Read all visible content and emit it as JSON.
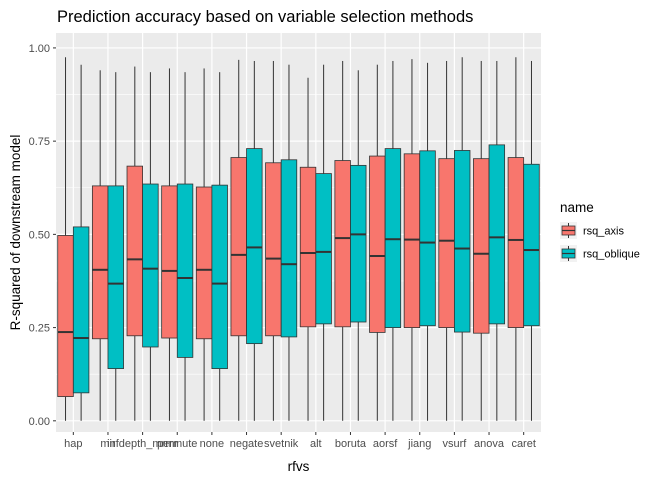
{
  "chart_data": {
    "type": "boxplot",
    "title": "Prediction accuracy based on variable selection methods",
    "xlabel": "rfvs",
    "ylabel": "R-squared of downstream model",
    "ylim": [
      -0.03,
      1.04
    ],
    "y_ticks": [
      "0.00",
      "0.25",
      "0.50",
      "0.75",
      "1.00"
    ],
    "categories": [
      "hap",
      "mir",
      "infdepth_mrmr",
      "permute",
      "none",
      "negate",
      "svetnik",
      "alt",
      "boruta",
      "aorsf",
      "jiang",
      "vsurf",
      "anova",
      "caret"
    ],
    "grid": true,
    "legend": {
      "title": "name",
      "position": "right"
    },
    "series": [
      {
        "name": "rsq_axis",
        "color": "#F8766D",
        "boxes": [
          {
            "min": 0.0,
            "q1": 0.065,
            "median": 0.238,
            "q3": 0.497,
            "max": 0.975
          },
          {
            "min": 0.0,
            "q1": 0.22,
            "median": 0.405,
            "q3": 0.63,
            "max": 0.94
          },
          {
            "min": 0.0,
            "q1": 0.228,
            "median": 0.433,
            "q3": 0.683,
            "max": 0.95
          },
          {
            "min": 0.0,
            "q1": 0.222,
            "median": 0.402,
            "q3": 0.63,
            "max": 0.945
          },
          {
            "min": 0.0,
            "q1": 0.22,
            "median": 0.405,
            "q3": 0.627,
            "max": 0.945
          },
          {
            "min": 0.0,
            "q1": 0.228,
            "median": 0.445,
            "q3": 0.706,
            "max": 0.968
          },
          {
            "min": 0.0,
            "q1": 0.228,
            "median": 0.435,
            "q3": 0.692,
            "max": 0.965
          },
          {
            "min": 0.0,
            "q1": 0.252,
            "median": 0.45,
            "q3": 0.68,
            "max": 0.92
          },
          {
            "min": 0.0,
            "q1": 0.252,
            "median": 0.49,
            "q3": 0.698,
            "max": 0.965
          },
          {
            "min": 0.0,
            "q1": 0.237,
            "median": 0.442,
            "q3": 0.71,
            "max": 0.955
          },
          {
            "min": 0.0,
            "q1": 0.25,
            "median": 0.486,
            "q3": 0.716,
            "max": 0.97
          },
          {
            "min": 0.0,
            "q1": 0.25,
            "median": 0.483,
            "q3": 0.703,
            "max": 0.965
          },
          {
            "min": 0.0,
            "q1": 0.235,
            "median": 0.448,
            "q3": 0.703,
            "max": 0.965
          },
          {
            "min": 0.0,
            "q1": 0.25,
            "median": 0.485,
            "q3": 0.706,
            "max": 0.975
          }
        ]
      },
      {
        "name": "rsq_oblique",
        "color": "#00BFC4",
        "boxes": [
          {
            "min": 0.0,
            "q1": 0.075,
            "median": 0.222,
            "q3": 0.52,
            "max": 0.955
          },
          {
            "min": 0.0,
            "q1": 0.14,
            "median": 0.368,
            "q3": 0.63,
            "max": 0.935
          },
          {
            "min": 0.0,
            "q1": 0.198,
            "median": 0.408,
            "q3": 0.635,
            "max": 0.935
          },
          {
            "min": 0.0,
            "q1": 0.17,
            "median": 0.383,
            "q3": 0.635,
            "max": 0.935
          },
          {
            "min": 0.0,
            "q1": 0.14,
            "median": 0.368,
            "q3": 0.632,
            "max": 0.935
          },
          {
            "min": 0.0,
            "q1": 0.207,
            "median": 0.465,
            "q3": 0.73,
            "max": 0.965
          },
          {
            "min": 0.0,
            "q1": 0.225,
            "median": 0.42,
            "q3": 0.7,
            "max": 0.955
          },
          {
            "min": 0.0,
            "q1": 0.26,
            "median": 0.453,
            "q3": 0.663,
            "max": 0.955
          },
          {
            "min": 0.0,
            "q1": 0.265,
            "median": 0.5,
            "q3": 0.685,
            "max": 0.94
          },
          {
            "min": 0.0,
            "q1": 0.25,
            "median": 0.487,
            "q3": 0.73,
            "max": 0.965
          },
          {
            "min": 0.0,
            "q1": 0.255,
            "median": 0.478,
            "q3": 0.724,
            "max": 0.96
          },
          {
            "min": 0.0,
            "q1": 0.238,
            "median": 0.462,
            "q3": 0.725,
            "max": 0.975
          },
          {
            "min": 0.0,
            "q1": 0.26,
            "median": 0.492,
            "q3": 0.74,
            "max": 0.965
          },
          {
            "min": 0.0,
            "q1": 0.255,
            "median": 0.458,
            "q3": 0.688,
            "max": 0.965
          }
        ]
      }
    ]
  }
}
